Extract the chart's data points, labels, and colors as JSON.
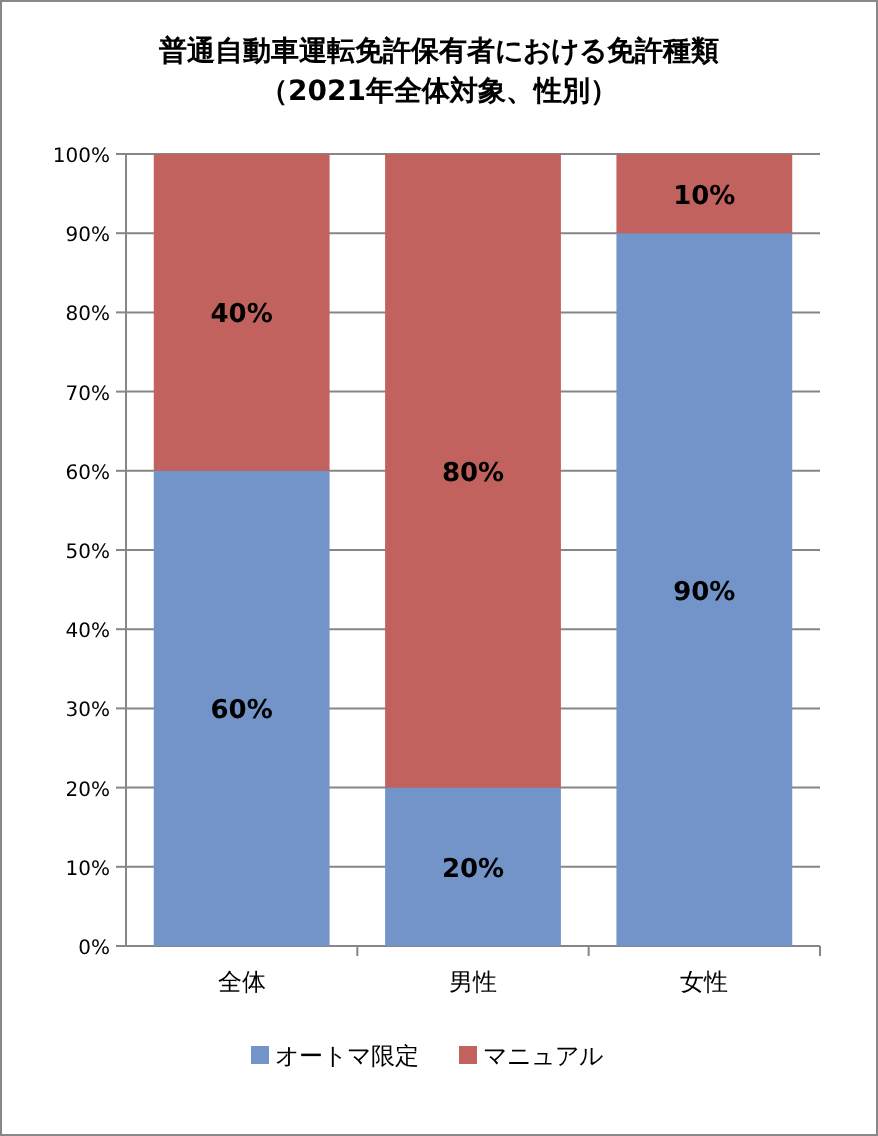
{
  "chart_data": {
    "type": "bar",
    "stacked": true,
    "title": "普通自動車運転免許保有者における免許種類",
    "subtitle": "（2021年全体対象、性別）",
    "categories": [
      "全体",
      "男性",
      "女性"
    ],
    "series": [
      {
        "name": "オートマ限定",
        "color": "#7394c9",
        "values": [
          60,
          20,
          90
        ],
        "value_labels": [
          "60%",
          "20%",
          "90%"
        ]
      },
      {
        "name": "マニュアル",
        "color": "#c2625e",
        "values": [
          40,
          80,
          10
        ],
        "value_labels": [
          "40%",
          "80%",
          "10%"
        ]
      }
    ],
    "ylim": [
      0,
      100
    ],
    "yticks": [
      {
        "value": 0,
        "label": "0%"
      },
      {
        "value": 10,
        "label": "10%"
      },
      {
        "value": 20,
        "label": "20%"
      },
      {
        "value": 30,
        "label": "30%"
      },
      {
        "value": 40,
        "label": "40%"
      },
      {
        "value": 50,
        "label": "50%"
      },
      {
        "value": 60,
        "label": "60%"
      },
      {
        "value": 70,
        "label": "70%"
      },
      {
        "value": 80,
        "label": "80%"
      },
      {
        "value": 90,
        "label": "90%"
      },
      {
        "value": 100,
        "label": "100%"
      }
    ],
    "grid": "y",
    "legend": "bottom"
  }
}
